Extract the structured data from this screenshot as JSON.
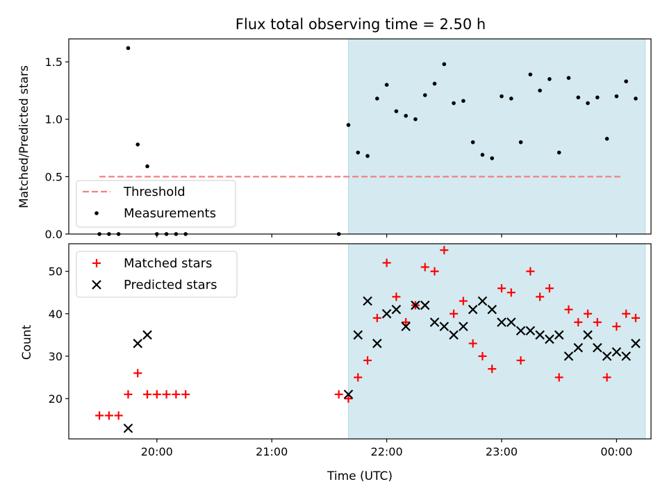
{
  "chart_data": {
    "title": "Flux total observing time = 2.50 h",
    "colors": {
      "shade": "#d4eaf0",
      "shade_edge": "#b3dae6",
      "threshold": "#f08080",
      "measurement": "#000000",
      "matched": "#ff0000",
      "predicted": "#000000"
    },
    "top": {
      "type": "scatter",
      "ylabel": "Matched/Predicted stars",
      "ylim": [
        0,
        1.7
      ],
      "yticks": [
        {
          "v": 0.0,
          "label": "0.0"
        },
        {
          "v": 0.5,
          "label": "0.5"
        },
        {
          "v": 1.0,
          "label": "1.0"
        },
        {
          "v": 1.5,
          "label": "1.5"
        }
      ],
      "threshold": {
        "name": "Threshold",
        "y": 0.5,
        "x_start": "19:30",
        "x_end": "00:02"
      },
      "series": [
        {
          "name": "Measurements",
          "marker": "dot",
          "points": [
            [
              "19:30",
              0
            ],
            [
              "19:35",
              0
            ],
            [
              "19:40",
              0
            ],
            [
              "19:45",
              1.62
            ],
            [
              "19:50",
              0.78
            ],
            [
              "19:55",
              0.59
            ],
            [
              "20:00",
              0
            ],
            [
              "20:05",
              0
            ],
            [
              "20:10",
              0
            ],
            [
              "20:15",
              0
            ],
            [
              "21:35",
              0
            ],
            [
              "21:40",
              0.95
            ],
            [
              "21:45",
              0.71
            ],
            [
              "21:50",
              0.68
            ],
            [
              "21:55",
              1.18
            ],
            [
              "22:00",
              1.3
            ],
            [
              "22:05",
              1.07
            ],
            [
              "22:10",
              1.03
            ],
            [
              "22:15",
              1.0
            ],
            [
              "22:20",
              1.21
            ],
            [
              "22:25",
              1.31
            ],
            [
              "22:30",
              1.48
            ],
            [
              "22:35",
              1.14
            ],
            [
              "22:40",
              1.16
            ],
            [
              "22:45",
              0.8
            ],
            [
              "22:50",
              0.69
            ],
            [
              "22:55",
              0.66
            ],
            [
              "23:00",
              1.2
            ],
            [
              "23:05",
              1.18
            ],
            [
              "23:10",
              0.8
            ],
            [
              "23:15",
              1.39
            ],
            [
              "23:20",
              1.25
            ],
            [
              "23:25",
              1.35
            ],
            [
              "23:30",
              0.71
            ],
            [
              "23:35",
              1.36
            ],
            [
              "23:40",
              1.19
            ],
            [
              "23:45",
              1.14
            ],
            [
              "23:50",
              1.19
            ],
            [
              "23:55",
              0.83
            ],
            [
              "00:00",
              1.2
            ],
            [
              "00:05",
              1.33
            ],
            [
              "00:10",
              1.18
            ]
          ]
        }
      ],
      "legend": {
        "position": "lower-left",
        "entries": [
          "Threshold",
          "Measurements"
        ]
      }
    },
    "bottom": {
      "type": "scatter",
      "ylabel": "Count",
      "xlabel": "Time (UTC)",
      "ylim": [
        10.5,
        56.5
      ],
      "yticks": [
        {
          "v": 20,
          "label": "20"
        },
        {
          "v": 30,
          "label": "30"
        },
        {
          "v": 40,
          "label": "40"
        },
        {
          "v": 50,
          "label": "50"
        }
      ],
      "series": [
        {
          "name": "Matched stars",
          "marker": "plus",
          "points": [
            [
              "19:30",
              16
            ],
            [
              "19:35",
              16
            ],
            [
              "19:40",
              16
            ],
            [
              "19:45",
              21
            ],
            [
              "19:50",
              26
            ],
            [
              "19:55",
              21
            ],
            [
              "20:00",
              21
            ],
            [
              "20:05",
              21
            ],
            [
              "20:10",
              21
            ],
            [
              "20:15",
              21
            ],
            [
              "21:35",
              21
            ],
            [
              "21:40",
              20
            ],
            [
              "21:45",
              25
            ],
            [
              "21:50",
              29
            ],
            [
              "21:55",
              39
            ],
            [
              "22:00",
              52
            ],
            [
              "22:05",
              44
            ],
            [
              "22:10",
              38
            ],
            [
              "22:15",
              42
            ],
            [
              "22:20",
              51
            ],
            [
              "22:25",
              50
            ],
            [
              "22:30",
              55
            ],
            [
              "22:35",
              40
            ],
            [
              "22:40",
              43
            ],
            [
              "22:45",
              33
            ],
            [
              "22:50",
              30
            ],
            [
              "22:55",
              27
            ],
            [
              "23:00",
              46
            ],
            [
              "23:05",
              45
            ],
            [
              "23:10",
              29
            ],
            [
              "23:15",
              50
            ],
            [
              "23:20",
              44
            ],
            [
              "23:25",
              46
            ],
            [
              "23:30",
              25
            ],
            [
              "23:35",
              41
            ],
            [
              "23:40",
              38
            ],
            [
              "23:45",
              40
            ],
            [
              "23:50",
              38
            ],
            [
              "23:55",
              25
            ],
            [
              "00:00",
              37
            ],
            [
              "00:05",
              40
            ],
            [
              "00:10",
              39
            ]
          ]
        },
        {
          "name": "Predicted stars",
          "marker": "x",
          "points": [
            [
              "19:45",
              13
            ],
            [
              "19:50",
              33
            ],
            [
              "19:55",
              35
            ],
            [
              "21:40",
              21
            ],
            [
              "21:45",
              35
            ],
            [
              "21:50",
              43
            ],
            [
              "21:55",
              33
            ],
            [
              "22:00",
              40
            ],
            [
              "22:05",
              41
            ],
            [
              "22:10",
              37
            ],
            [
              "22:15",
              42
            ],
            [
              "22:20",
              42
            ],
            [
              "22:25",
              38
            ],
            [
              "22:30",
              37
            ],
            [
              "22:35",
              35
            ],
            [
              "22:40",
              37
            ],
            [
              "22:45",
              41
            ],
            [
              "22:50",
              43
            ],
            [
              "22:55",
              41
            ],
            [
              "23:00",
              38
            ],
            [
              "23:05",
              38
            ],
            [
              "23:10",
              36
            ],
            [
              "23:15",
              36
            ],
            [
              "23:20",
              35
            ],
            [
              "23:25",
              34
            ],
            [
              "23:30",
              35
            ],
            [
              "23:35",
              30
            ],
            [
              "23:40",
              32
            ],
            [
              "23:45",
              35
            ],
            [
              "23:50",
              32
            ],
            [
              "23:55",
              30
            ],
            [
              "00:00",
              31
            ],
            [
              "00:05",
              30
            ],
            [
              "00:10",
              33
            ]
          ]
        }
      ],
      "legend": {
        "position": "upper-left",
        "entries": [
          "Matched stars",
          "Predicted stars"
        ]
      }
    },
    "x_axis": {
      "type": "time",
      "xlim": [
        "19:14",
        "00:18"
      ],
      "ticks": [
        "20:00",
        "21:00",
        "22:00",
        "23:00",
        "00:00"
      ]
    },
    "shaded_span": {
      "start": "21:40",
      "end": "00:15"
    }
  }
}
